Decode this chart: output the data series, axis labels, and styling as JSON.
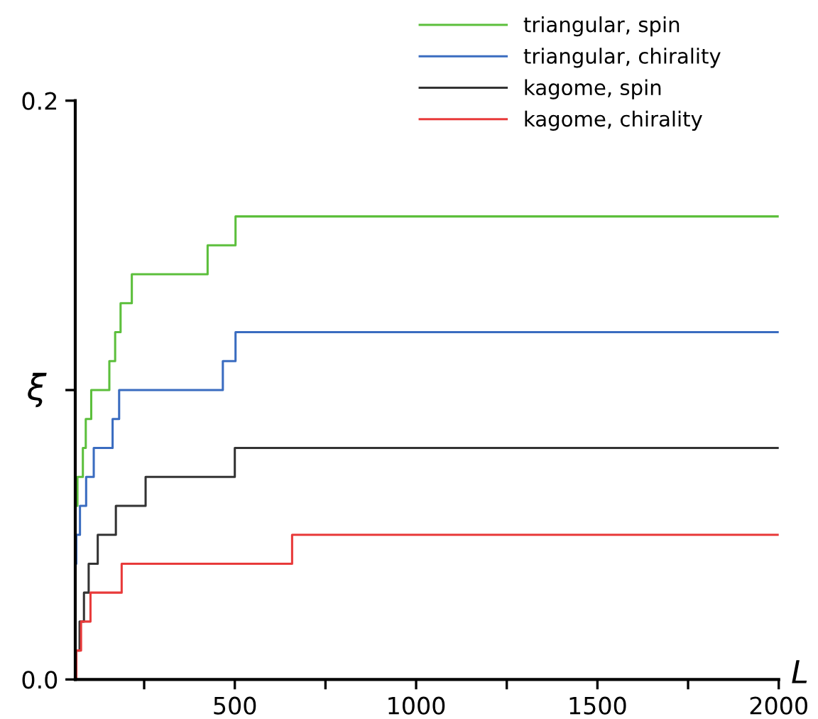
{
  "chart_data": {
    "type": "step",
    "xlabel": "L",
    "ylabel": "ξ",
    "xlim": [
      60,
      2000
    ],
    "ylim": [
      0,
      0.2
    ],
    "xticks": [
      {
        "value": 250,
        "label": null
      },
      500,
      {
        "value": 750,
        "label": null
      },
      1000,
      {
        "value": 1250,
        "label": null
      },
      1500,
      {
        "value": 1750,
        "label": null
      },
      2000
    ],
    "yticks": [
      {
        "value": 0,
        "label": "0.0"
      },
      {
        "value": 0.1,
        "label": null
      },
      0.2
    ],
    "legend": "top right",
    "grid": false,
    "series": [
      {
        "name": "triangular, spin",
        "color": "#5cbf3c",
        "x": [
          62,
          66,
          81,
          89,
          104,
          154,
          170,
          185,
          216,
          425,
          502,
          2000
        ],
        "values": [
          0.06,
          0.07,
          0.08,
          0.09,
          0.1,
          0.11,
          0.12,
          0.13,
          0.14,
          0.15,
          0.16,
          0.16
        ]
      },
      {
        "name": "triangular, chirality",
        "color": "#3a6cc0",
        "x": [
          62,
          63,
          73,
          90,
          111,
          163,
          181,
          467,
          502,
          2000
        ],
        "values": [
          0.04,
          0.05,
          0.06,
          0.07,
          0.08,
          0.09,
          0.1,
          0.11,
          0.12,
          0.12
        ]
      },
      {
        "name": "kagome, spin",
        "color": "#333333",
        "x": [
          62,
          63,
          72,
          84,
          97,
          122,
          172,
          254,
          500,
          2000
        ],
        "values": [
          0.0,
          0.01,
          0.02,
          0.03,
          0.04,
          0.05,
          0.06,
          0.07,
          0.08,
          0.08
        ]
      },
      {
        "name": "kagome, chirality",
        "color": "#e83a3a",
        "x": [
          62,
          63,
          76,
          102,
          188,
          658,
          2000
        ],
        "values": [
          0.0,
          0.01,
          0.02,
          0.03,
          0.04,
          0.05,
          0.05
        ]
      }
    ]
  }
}
